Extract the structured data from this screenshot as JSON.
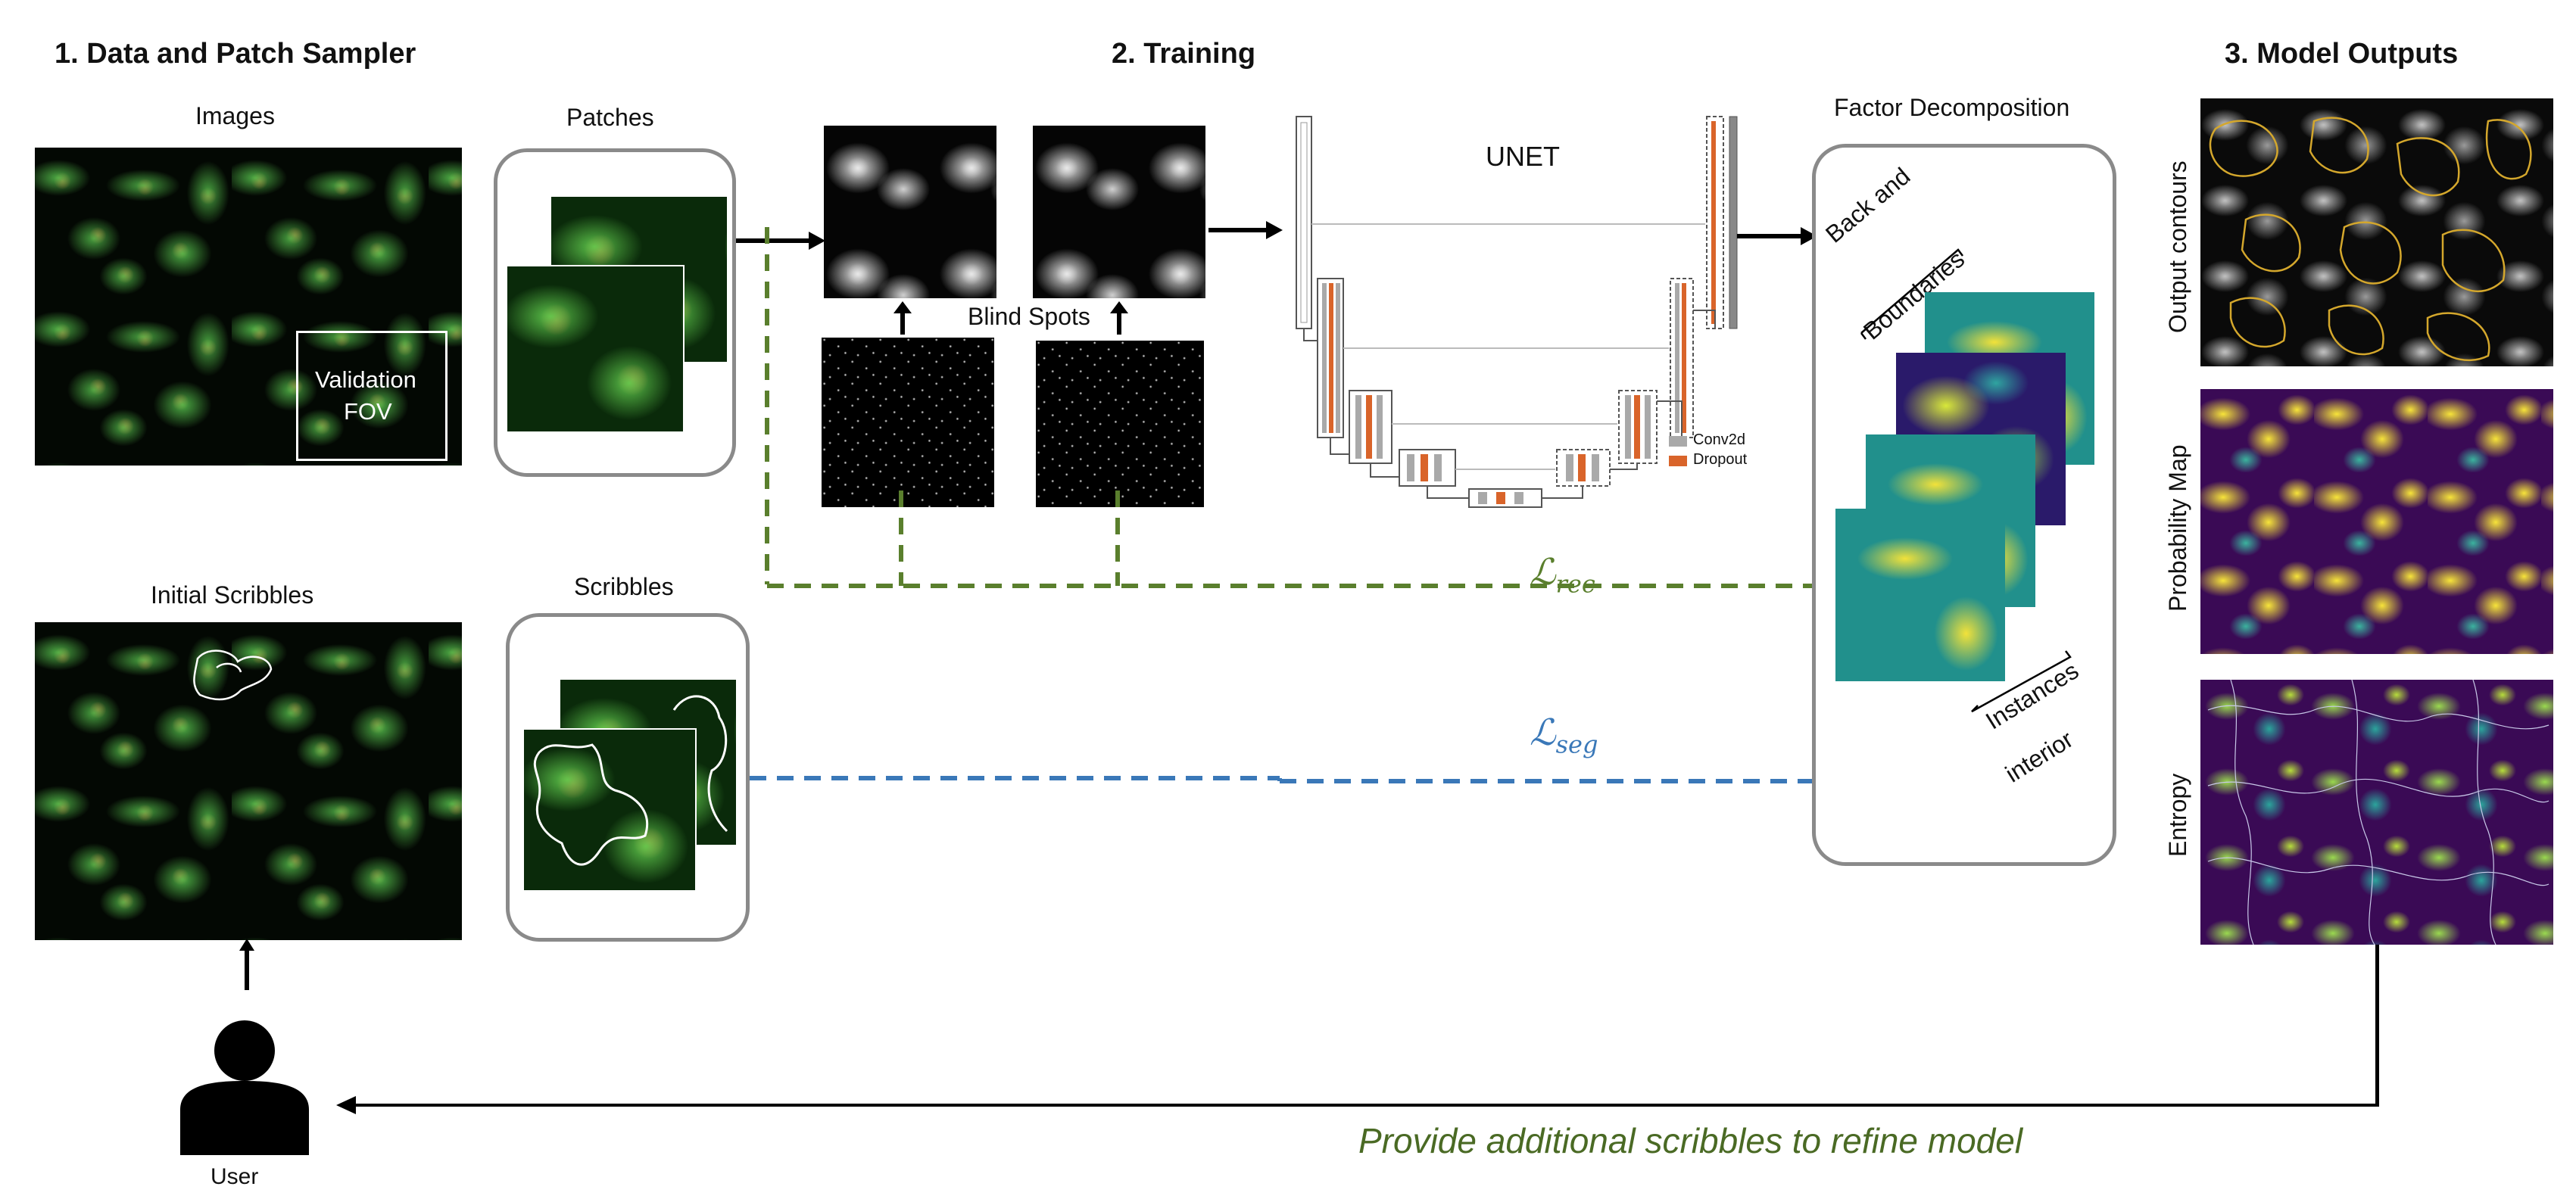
{
  "sections": {
    "data_sampler": "1. Data and Patch Sampler",
    "training": "2. Training",
    "outputs": "3. Model Outputs"
  },
  "labels": {
    "images": "Images",
    "validation": "Validation",
    "fov": "FOV",
    "patches": "Patches",
    "initial_scribbles": "Initial Scribbles",
    "scribbles": "Scribbles",
    "blind_spots": "Blind Spots",
    "unet": "UNET",
    "factor_decomposition": "Factor Decomposition",
    "back_and": "Back and",
    "boundaries": "Boundaries",
    "instances": "Instances",
    "interior": "interior",
    "loss_rec": "ℒ",
    "loss_rec_sub": "rec",
    "loss_seg": "ℒ",
    "loss_seg_sub": "seg",
    "user": "User",
    "refine": "Provide additional scribbles to refine model"
  },
  "legend": {
    "conv2d": "Conv2d",
    "dropout": "Dropout"
  },
  "outputs": {
    "contours": "Output contours",
    "probability": "Probability Map",
    "entropy": "Entropy"
  },
  "colors": {
    "loss_rec": "#5a7f2d",
    "loss_seg": "#3a78b8",
    "refine_text": "#4a6a24",
    "panel_border": "#8a8a8a",
    "conv2d": "#a9a9a9",
    "dropout": "#d9642a"
  }
}
